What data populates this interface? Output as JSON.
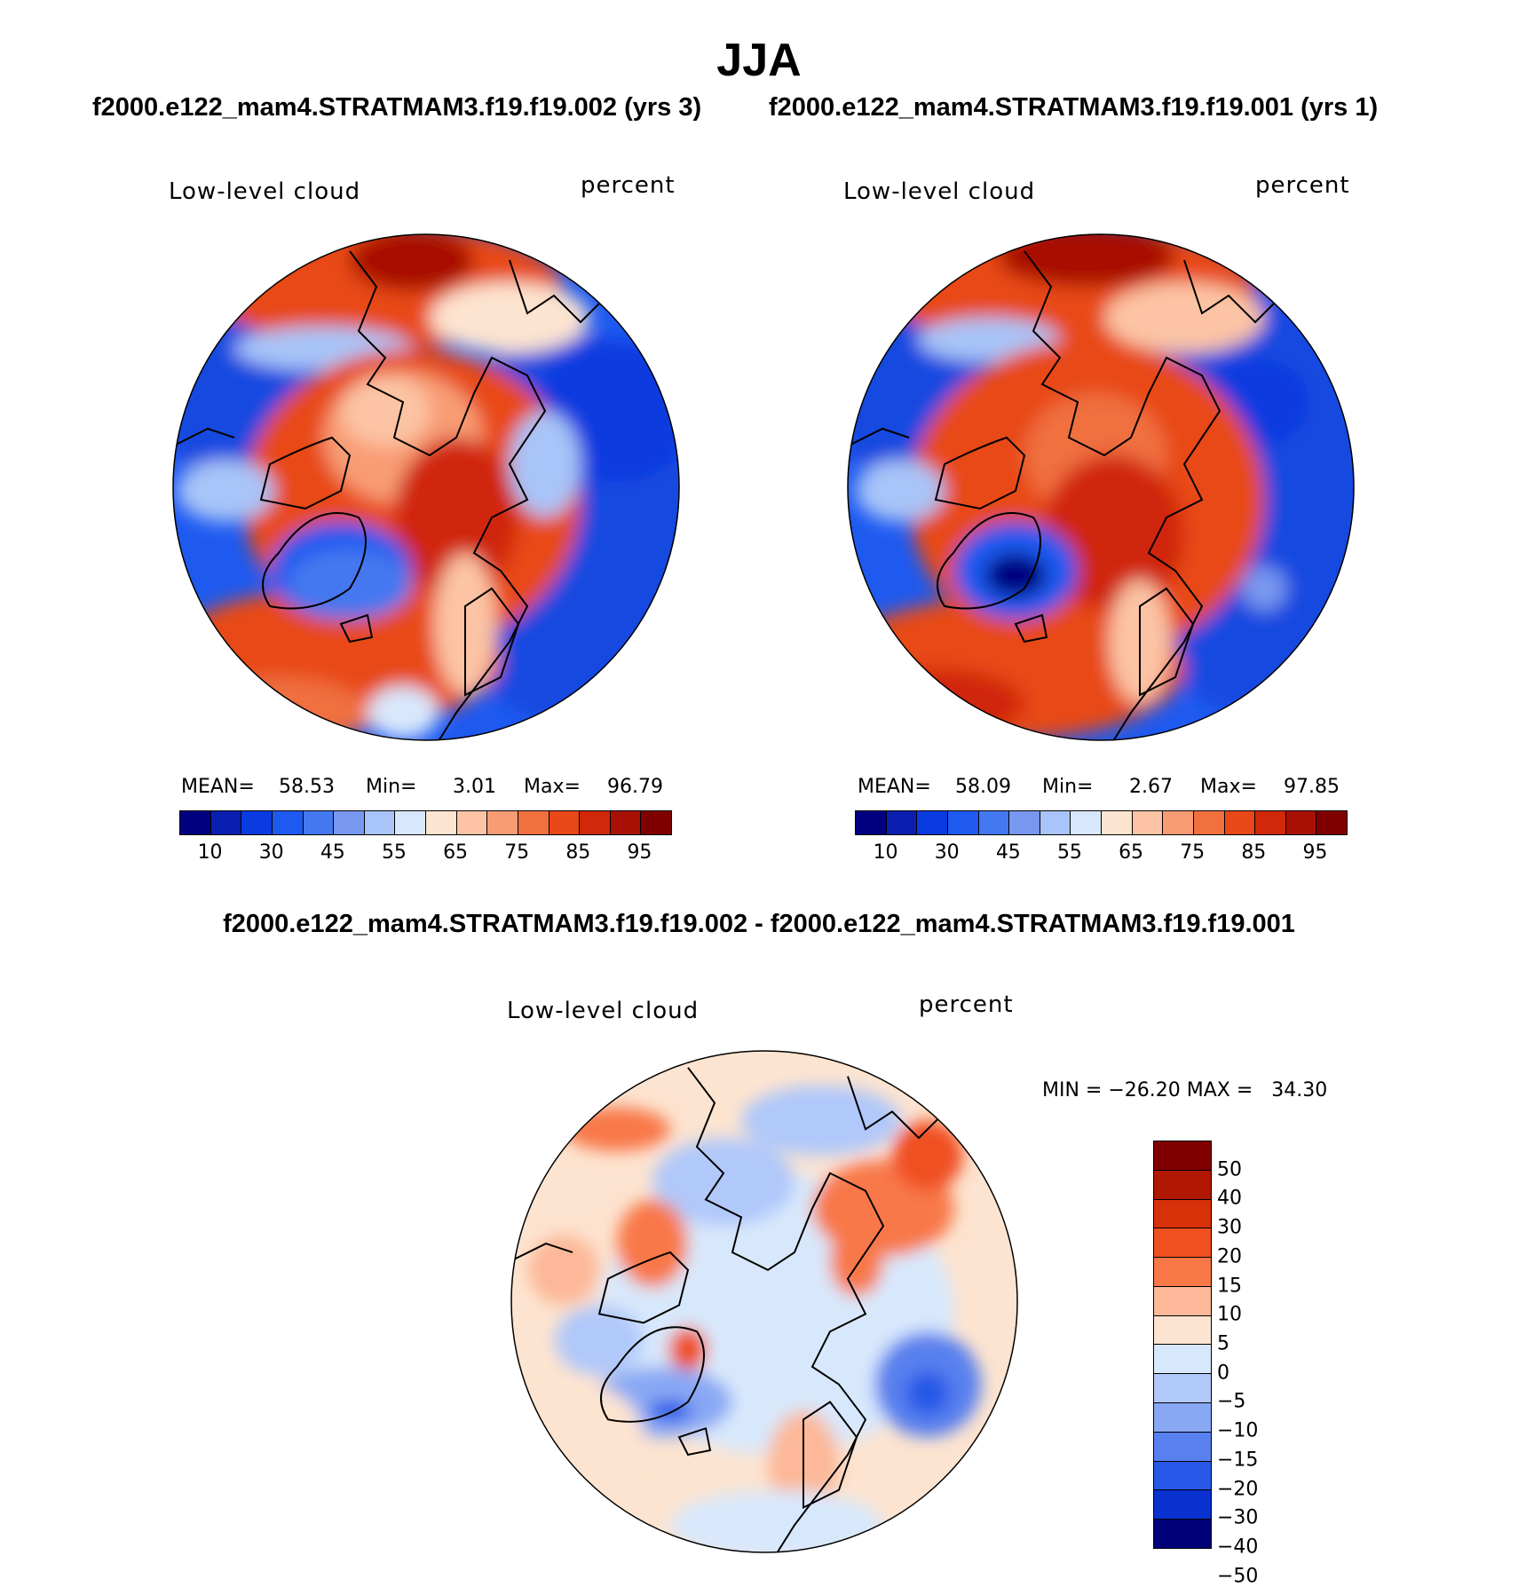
{
  "title": "JJA",
  "case_titles": {
    "left": "f2000.e122_mam4.STRATMAM3.f19.f19.002 (yrs 3)",
    "right": "f2000.e122_mam4.STRATMAM3.f19.f19.001 (yrs 1)"
  },
  "diff_title": "f2000.e122_mam4.STRATMAM3.f19.f19.002 - f2000.e122_mam4.STRATMAM3.f19.f19.001",
  "panels": [
    {
      "variable": "Low-level cloud",
      "units": "percent",
      "mean_label": "MEAN=",
      "mean": "58.53",
      "min_label": "Min=",
      "min": "3.01",
      "max_label": "Max=",
      "max": "96.79"
    },
    {
      "variable": "Low-level cloud",
      "units": "percent",
      "mean_label": "MEAN=",
      "mean": "58.09",
      "min_label": "Min=",
      "min": "2.67",
      "max_label": "Max=",
      "max": "97.85"
    }
  ],
  "diff_panel": {
    "variable": "Low-level cloud",
    "units": "percent",
    "minmax": "MIN = −26.20 MAX =   34.30"
  },
  "colorbar_abs": {
    "colors": [
      "#000080",
      "#0a1fb0",
      "#0a3be0",
      "#1e5af0",
      "#4478f0",
      "#7898f0",
      "#a8c4f8",
      "#d8e8fc",
      "#fde4d0",
      "#fcc4a4",
      "#f89c74",
      "#f07040",
      "#e84818",
      "#d02808",
      "#a81004",
      "#800000"
    ],
    "labels": [
      "10",
      "30",
      "45",
      "55",
      "65",
      "75",
      "85",
      "95"
    ]
  },
  "colorbar_diff": {
    "colors": [
      "#800000",
      "#b01804",
      "#d83008",
      "#f05020",
      "#f87848",
      "#fcb898",
      "#fde4d0",
      "#d8e8fc",
      "#b0c8fa",
      "#88a8f4",
      "#5880ee",
      "#2858e8",
      "#0a30d0",
      "#000078"
    ],
    "labels": [
      "50",
      "40",
      "30",
      "20",
      "15",
      "10",
      "5",
      "0",
      "−5",
      "−10",
      "−15",
      "−20",
      "−30",
      "−40",
      "−50"
    ]
  }
}
